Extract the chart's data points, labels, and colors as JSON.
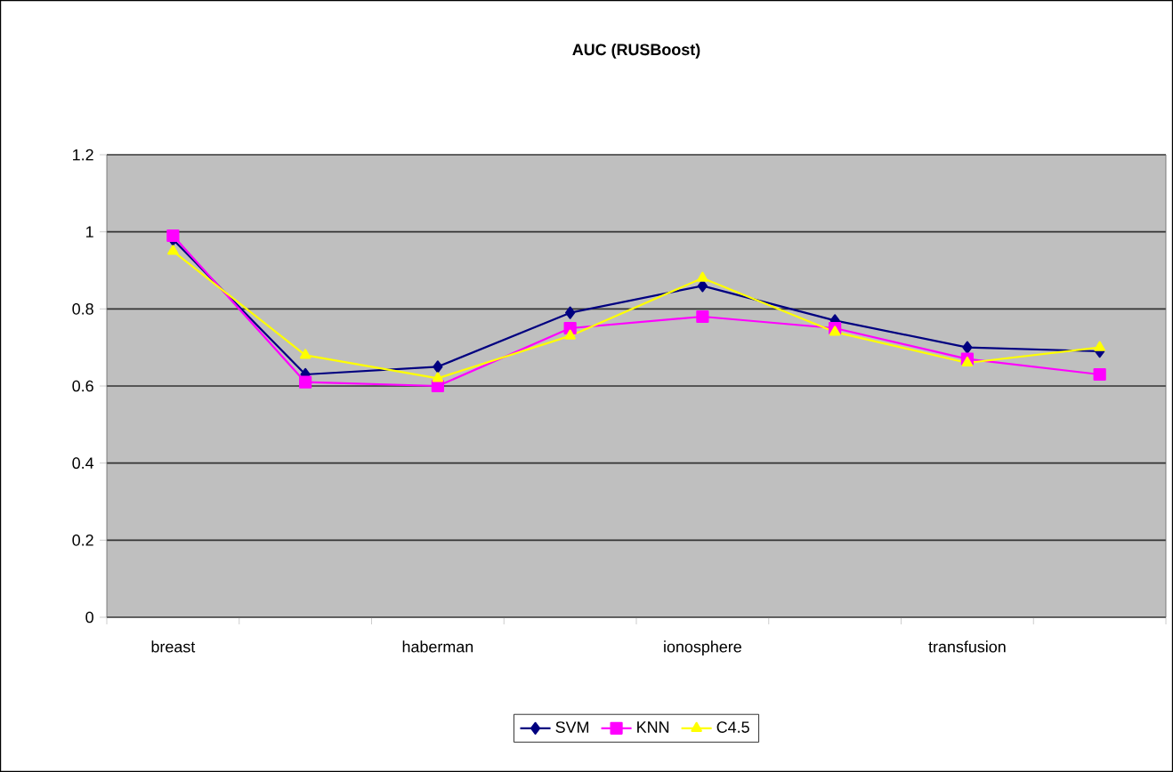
{
  "chart_data": {
    "type": "line",
    "title": "AUC (RUSBoost)",
    "categories": [
      "breast",
      null,
      "haberman",
      null,
      "ionosphere",
      null,
      "transfusion",
      null
    ],
    "series": [
      {
        "name": "SVM",
        "color": "#000080",
        "marker": "diamond",
        "values": [
          0.98,
          0.63,
          0.65,
          0.79,
          0.86,
          0.77,
          0.7,
          0.69
        ]
      },
      {
        "name": "KNN",
        "color": "#ff00ff",
        "marker": "square",
        "values": [
          0.99,
          0.61,
          0.6,
          0.75,
          0.78,
          0.75,
          0.67,
          0.63
        ]
      },
      {
        "name": "C4.5",
        "color": "#ffff00",
        "marker": "triangle",
        "values": [
          0.95,
          0.68,
          0.62,
          0.73,
          0.88,
          0.74,
          0.66,
          0.7
        ]
      }
    ],
    "ylim": [
      0,
      1.2
    ],
    "yticks": [
      0,
      0.2,
      0.4,
      0.6,
      0.8,
      1,
      1.2
    ],
    "grid": "y",
    "legend": "bottom"
  }
}
